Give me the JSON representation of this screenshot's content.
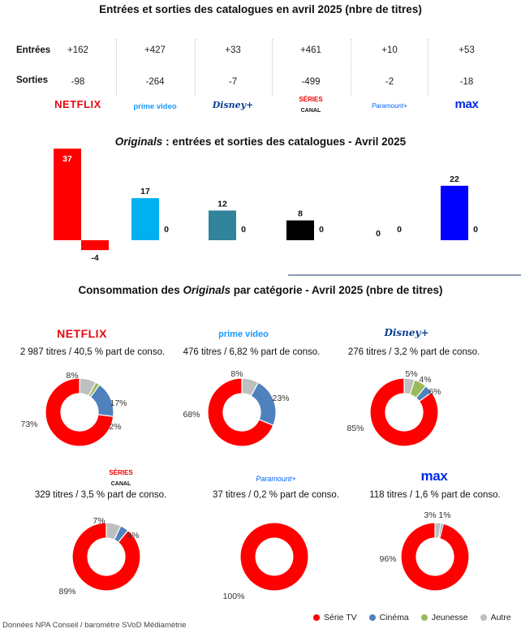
{
  "main_title": "Entrées et sorties des catalogues en avril 2025 (nbre de titres)",
  "rows": {
    "entrees": "Entrées",
    "sorties": "Sorties"
  },
  "services": [
    {
      "id": "netflix",
      "logo": "NETFLIX",
      "entrees": "+162",
      "sorties": "-98"
    },
    {
      "id": "prime",
      "logo": "prime video",
      "entrees": "+427",
      "sorties": "-264"
    },
    {
      "id": "disney",
      "logo": "Disney+",
      "entrees": "+33",
      "sorties": "-7"
    },
    {
      "id": "canal",
      "logo_top": "SÉRIES",
      "logo_bottom": "CANAL",
      "entrees": "+461",
      "sorties": "-499"
    },
    {
      "id": "paramount",
      "logo": "Paramount+",
      "entrees": "+10",
      "sorties": "-2"
    },
    {
      "id": "max",
      "logo": "max",
      "entrees": "+53",
      "sorties": "-18"
    }
  ],
  "originals_title_em": "Originals",
  "originals_title_rest": " : entrées et sorties des catalogues - Avril 2025",
  "consumption_title_pre": "Consommation des ",
  "consumption_title_em": "Originals",
  "consumption_title_post": " par catégorie - Avril 2025 (nbre de titres)",
  "service_info": [
    {
      "text": "2 987 titres / 40,5 % part de conso."
    },
    {
      "text": "476 titres / 6,82 % part de conso."
    },
    {
      "text": "276 titres / 3,2 % part de conso."
    },
    {
      "text": "329 titres / 3,5 % part de conso."
    },
    {
      "text": "37 titres / 0,2 % part de conso."
    },
    {
      "text": "118 titres / 1,6 % part de conso."
    }
  ],
  "source": "Données NPA Conseil /  baromètre SVoD Médiamétrie",
  "chart_data": [
    {
      "type": "bar",
      "title": "Originals : entrées et sorties des catalogues - Avril 2025",
      "categories": [
        "Netflix",
        "Prime Video",
        "Disney+",
        "Canal+ Séries",
        "Paramount+",
        "Max"
      ],
      "series": [
        {
          "name": "Entrées",
          "values": [
            37,
            17,
            12,
            8,
            0,
            22
          ]
        },
        {
          "name": "Sorties",
          "values": [
            -4,
            0,
            0,
            0,
            0,
            0
          ]
        }
      ],
      "colors": [
        "#ff0000",
        "#00b0f0",
        "#31849b",
        "#000000",
        "#0050a0",
        "#0000ff"
      ]
    },
    {
      "type": "pie",
      "title": "Consommation des Originals par catégorie - Avril 2025 (nbre de titres)",
      "legend": [
        {
          "name": "Série TV",
          "color": "#ff0000"
        },
        {
          "name": "Cinéma",
          "color": "#4f81bd"
        },
        {
          "name": "Jeunesse",
          "color": "#9bbb59"
        },
        {
          "name": "Autre",
          "color": "#bfbfbf"
        }
      ],
      "donuts": [
        {
          "service": "Netflix",
          "values": [
            73,
            17,
            2,
            8
          ],
          "labels": [
            "73%",
            "17%",
            "2%",
            "8%"
          ]
        },
        {
          "service": "Prime Video",
          "values": [
            68,
            23,
            0,
            8
          ],
          "labels": [
            "68%",
            "23%",
            "",
            "8%"
          ]
        },
        {
          "service": "Disney+",
          "values": [
            85,
            4,
            6,
            5
          ],
          "labels": [
            "85%",
            "4%",
            "6%",
            "5%"
          ]
        },
        {
          "service": "Canal+ Séries",
          "values": [
            89,
            4,
            0,
            7
          ],
          "labels": [
            "89%",
            "4%",
            "",
            "7%"
          ]
        },
        {
          "service": "Paramount+",
          "values": [
            100,
            0,
            0,
            0
          ],
          "labels": [
            "100%",
            "",
            "",
            ""
          ]
        },
        {
          "service": "Max",
          "values": [
            96,
            1,
            0,
            3
          ],
          "labels": [
            "96%",
            "1%",
            "",
            "3%"
          ]
        }
      ]
    }
  ]
}
